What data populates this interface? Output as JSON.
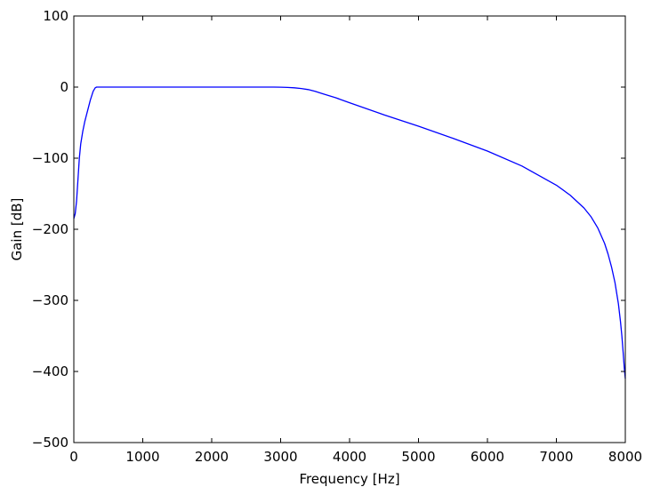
{
  "chart_data": {
    "type": "line",
    "title": "",
    "xlabel": "Frequency [Hz]",
    "ylabel": "Gain [dB]",
    "xlim": [
      0,
      8000
    ],
    "ylim": [
      -500,
      100
    ],
    "grid": false,
    "legend": "none",
    "x_ticks": [
      0,
      1000,
      2000,
      3000,
      4000,
      5000,
      6000,
      7000,
      8000
    ],
    "y_ticks": [
      100,
      0,
      -100,
      -200,
      -300,
      -400,
      -500
    ],
    "x_tick_labels": [
      "0",
      "1000",
      "2000",
      "3000",
      "4000",
      "5000",
      "6000",
      "7000",
      "8000"
    ],
    "y_tick_labels": [
      "100",
      "0",
      "−100",
      "−200",
      "−300",
      "−400",
      "−500"
    ],
    "series": [
      {
        "color": "#0000ff",
        "x": [
          0,
          20,
          40,
          60,
          80,
          100,
          130,
          160,
          200,
          240,
          280,
          310,
          330,
          360,
          400,
          600,
          1000,
          1500,
          2000,
          2500,
          2900,
          3000,
          3100,
          3200,
          3300,
          3400,
          3500,
          3600,
          3800,
          4000,
          4500,
          5000,
          5500,
          6000,
          6500,
          7000,
          7200,
          7400,
          7500,
          7600,
          7700,
          7750,
          7800,
          7850,
          7900,
          7930,
          7950,
          7970,
          7985,
          8000
        ],
        "y": [
          -185,
          -178,
          -160,
          -130,
          -100,
          -80,
          -62,
          -48,
          -33,
          -18,
          -6,
          -1,
          0,
          0,
          0,
          0,
          0,
          0,
          0,
          0,
          0,
          -0.2,
          -0.5,
          -1,
          -2,
          -3.5,
          -6,
          -9,
          -15,
          -22,
          -39,
          -55,
          -72,
          -90,
          -111,
          -138,
          -152,
          -170,
          -182,
          -198,
          -220,
          -235,
          -253,
          -275,
          -305,
          -330,
          -350,
          -375,
          -395,
          -410
        ]
      }
    ]
  }
}
